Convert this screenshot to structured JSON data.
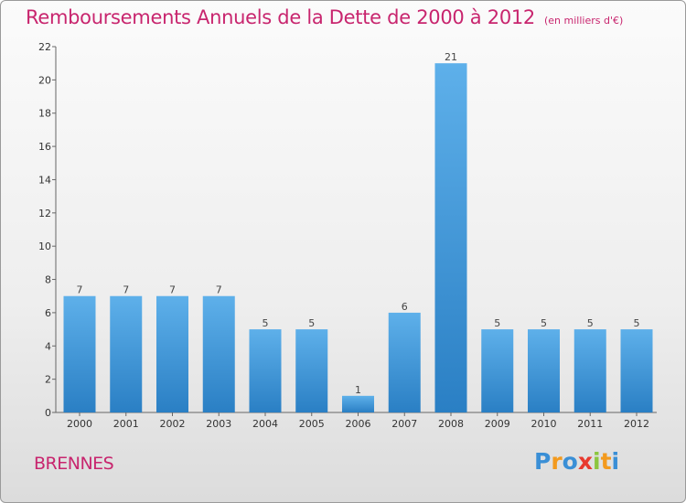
{
  "chart_data": {
    "type": "bar",
    "title": "Remboursements Annuels de la Dette de 2000 à 2012",
    "subtitle": "(en milliers d'€)",
    "categories": [
      "2000",
      "2001",
      "2002",
      "2003",
      "2004",
      "2005",
      "2006",
      "2007",
      "2008",
      "2009",
      "2010",
      "2011",
      "2012"
    ],
    "values": [
      7,
      7,
      7,
      7,
      5,
      5,
      1,
      6,
      21,
      5,
      5,
      5,
      5
    ],
    "ylim": [
      0,
      22
    ],
    "yticks": [
      0,
      2,
      4,
      6,
      8,
      10,
      12,
      14,
      16,
      18,
      20,
      22
    ],
    "grid": false,
    "xlabel": "",
    "ylabel": "",
    "bar_color": "#3f95d8"
  },
  "footer": {
    "commune": "BRENNES",
    "logo": {
      "letters": [
        "P",
        "r",
        "o",
        "x",
        "i",
        "t",
        "i"
      ],
      "colors": [
        "#3a8fd6",
        "#f39a1e",
        "#3a8fd6",
        "#e8392e",
        "#8cc63f",
        "#f39a1e",
        "#3a8fd6"
      ]
    }
  }
}
